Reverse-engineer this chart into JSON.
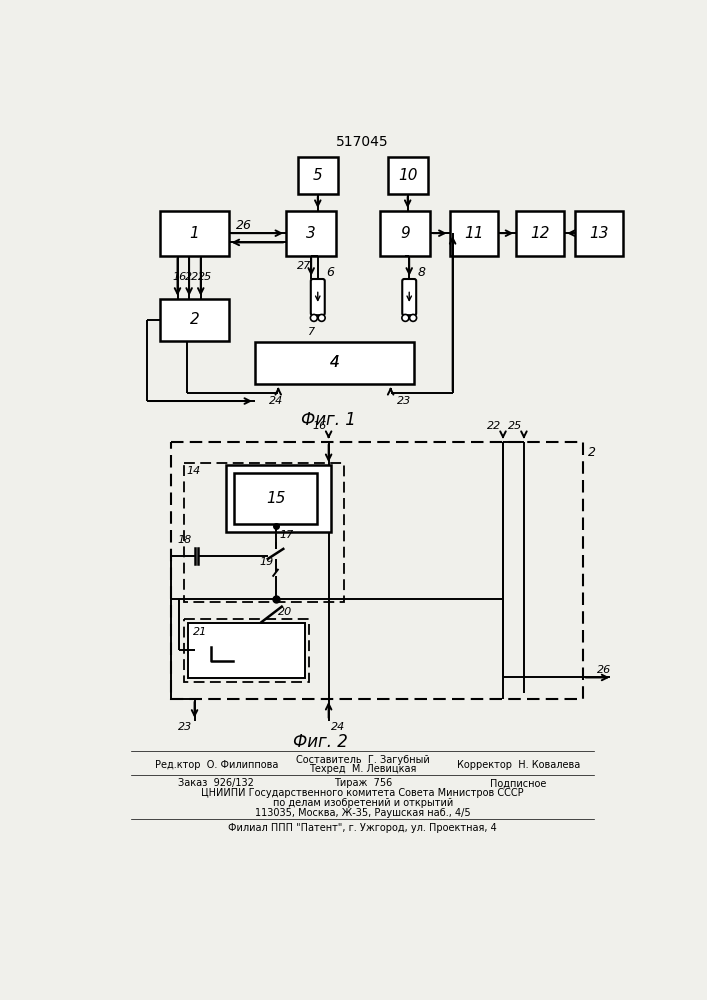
{
  "title": "517045",
  "fig1_caption": "Фиг. 1",
  "fig2_caption": "Фиг. 2",
  "bg_color": "#f0f0eb",
  "footer": [
    [
      "left",
      160,
      "Ред.актор  О. Филиппова"
    ],
    [
      "center",
      354,
      "Составитель  Г. Загубный\nТехред  М. Левицкая"
    ],
    [
      "right",
      560,
      "Корректор  Н. Ковалева"
    ]
  ]
}
